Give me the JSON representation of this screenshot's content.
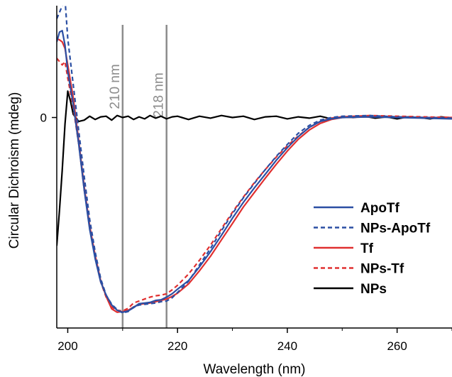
{
  "chart_data": {
    "type": "line",
    "title": "",
    "xlabel": "Wavelength (nm)",
    "ylabel": "Circular Dichroism (mdeg)",
    "xlim": [
      198,
      270
    ],
    "ylim": [
      -32,
      17
    ],
    "x_ticks": [
      200,
      220,
      240,
      260
    ],
    "y_ticks": [
      0
    ],
    "grid": false,
    "legend_position": "bottom-right",
    "reference_lines": [
      {
        "x": 210,
        "label": "210 nm",
        "color": "#8c8c8c"
      },
      {
        "x": 218,
        "label": "218 nm",
        "color": "#8c8c8c"
      }
    ],
    "series": [
      {
        "name": "ApoTf",
        "color": "#2b4fa3",
        "dash": "solid",
        "x": [
          198,
          198.5,
          199,
          199.5,
          200,
          201,
          202,
          203,
          204,
          205,
          206,
          207,
          208,
          209,
          210,
          211,
          212,
          213,
          214,
          215,
          216,
          217,
          218,
          219,
          220,
          222,
          224,
          226,
          228,
          230,
          232,
          234,
          236,
          238,
          240,
          242,
          244,
          246,
          248,
          250,
          255,
          260,
          265,
          270
        ],
        "y": [
          11.5,
          13,
          13.2,
          11,
          7,
          2,
          -4,
          -11,
          -17,
          -21.5,
          -25,
          -27,
          -28.5,
          -29.3,
          -29.6,
          -29.4,
          -28.9,
          -28.3,
          -28.2,
          -28.1,
          -27.8,
          -27.7,
          -27.3,
          -26.8,
          -26.1,
          -24.8,
          -22.7,
          -20.4,
          -17.9,
          -15.3,
          -12.9,
          -10.7,
          -8.6,
          -6.5,
          -4.6,
          -2.9,
          -1.5,
          -0.6,
          -0.2,
          0,
          0.1,
          0,
          -0.1,
          -0.2
        ]
      },
      {
        "name": "NPs-ApoTf",
        "color": "#2b4fa3",
        "dash": "dashed",
        "x": [
          198,
          198.5,
          199,
          199.5,
          200,
          201,
          202,
          203,
          204,
          205,
          206,
          207,
          208,
          209,
          210,
          211,
          212,
          213,
          214,
          215,
          216,
          217,
          218,
          219,
          220,
          222,
          224,
          226,
          228,
          230,
          232,
          234,
          236,
          238,
          240,
          242,
          244,
          246,
          248,
          250,
          255,
          260,
          265,
          270
        ],
        "y": [
          15,
          16,
          17,
          18,
          12,
          5,
          -2,
          -9,
          -15.5,
          -20.5,
          -24.5,
          -27,
          -28.4,
          -29.2,
          -29.7,
          -29.5,
          -28.8,
          -28.5,
          -28.4,
          -28.3,
          -28.2,
          -28,
          -27.9,
          -27.4,
          -26.6,
          -24.9,
          -22.4,
          -19.9,
          -17.2,
          -14.6,
          -12.2,
          -10,
          -7.9,
          -5.9,
          -4.1,
          -2.4,
          -1.2,
          -0.4,
          0,
          0.2,
          0.3,
          0.1,
          0,
          -0.1
        ]
      },
      {
        "name": "Tf",
        "color": "#e03030",
        "dash": "solid",
        "x": [
          198,
          198.5,
          199,
          199.5,
          200,
          201,
          202,
          203,
          204,
          205,
          206,
          207,
          208,
          209,
          210,
          211,
          212,
          213,
          214,
          215,
          216,
          217,
          218,
          219,
          220,
          222,
          224,
          226,
          228,
          230,
          232,
          234,
          236,
          238,
          240,
          242,
          244,
          246,
          248,
          250,
          255,
          260,
          265,
          270
        ],
        "y": [
          12,
          11.8,
          11.5,
          10.5,
          8,
          3,
          -3.5,
          -10.5,
          -16.5,
          -21,
          -24.8,
          -27.2,
          -29.1,
          -29.6,
          -29.5,
          -29.3,
          -28.8,
          -28.4,
          -28.3,
          -28.2,
          -28,
          -27.8,
          -27.6,
          -27.2,
          -26.7,
          -25.3,
          -23.3,
          -21.1,
          -18.6,
          -16.1,
          -13.6,
          -11.4,
          -9.2,
          -7.1,
          -5.1,
          -3.3,
          -1.9,
          -0.9,
          -0.3,
          0,
          0.1,
          0.1,
          0,
          0
        ]
      },
      {
        "name": "NPs-Tf",
        "color": "#e03030",
        "dash": "dashed",
        "x": [
          198,
          198.5,
          199,
          199.5,
          200,
          201,
          202,
          203,
          204,
          205,
          206,
          207,
          208,
          209,
          210,
          211,
          212,
          213,
          214,
          215,
          216,
          217,
          218,
          219,
          220,
          222,
          224,
          226,
          228,
          230,
          232,
          234,
          236,
          238,
          240,
          242,
          244,
          246,
          248,
          250,
          255,
          260,
          265,
          270
        ],
        "y": [
          9,
          8.5,
          8,
          8.5,
          6,
          1.5,
          -4,
          -11,
          -16.8,
          -21.3,
          -25,
          -27.3,
          -28.8,
          -29.3,
          -29.4,
          -29,
          -28.2,
          -27.9,
          -27.6,
          -27.3,
          -27.1,
          -27,
          -26.8,
          -26.2,
          -25.5,
          -23.8,
          -21.7,
          -19.4,
          -16.9,
          -14.4,
          -12.1,
          -9.9,
          -7.9,
          -6,
          -4.3,
          -2.8,
          -1.5,
          -0.6,
          -0.1,
          0.1,
          0.3,
          0.2,
          0.1,
          0
        ]
      },
      {
        "name": "NPs",
        "color": "#000000",
        "dash": "solid",
        "x": [
          198,
          198.5,
          199,
          199.5,
          200,
          200.5,
          201,
          202,
          203,
          204,
          205,
          206,
          207,
          208,
          209,
          210,
          211,
          212,
          213,
          214,
          215,
          216,
          217,
          218,
          219,
          220,
          222,
          224,
          226,
          228,
          230,
          232,
          234,
          236,
          238,
          240,
          242,
          244,
          246,
          248,
          250,
          252,
          254,
          256,
          258,
          260,
          262,
          264,
          266,
          268,
          270
        ],
        "y": [
          -19.5,
          -14,
          -8,
          -1,
          4,
          2.5,
          0.5,
          -0.6,
          -0.4,
          0.2,
          -0.3,
          0.1,
          0.2,
          -0.4,
          0.3,
          0,
          0.2,
          -0.3,
          0.1,
          -0.2,
          0.3,
          -0.1,
          0.2,
          -0.2,
          0.1,
          0.2,
          -0.3,
          0.2,
          -0.1,
          0.3,
          0,
          0.2,
          -0.3,
          0.1,
          0.2,
          -0.2,
          0.1,
          -0.1,
          0.2,
          -0.2,
          0.1,
          0,
          0.2,
          -0.1,
          0.1,
          -0.2,
          0.1,
          0,
          -0.2,
          0.1,
          -0.1
        ]
      }
    ]
  }
}
